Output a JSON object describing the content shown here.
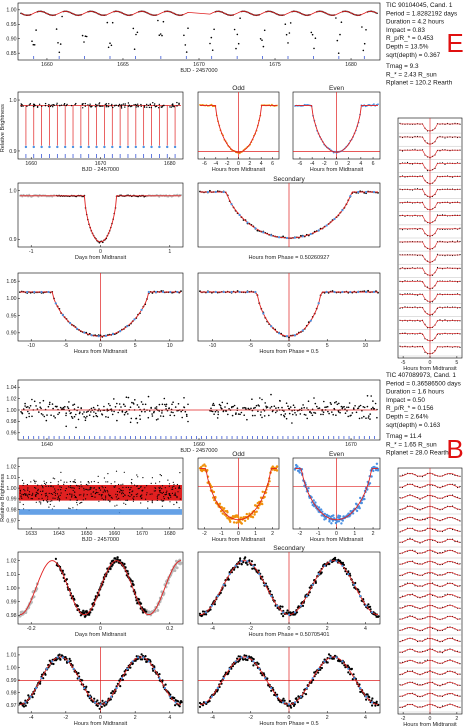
{
  "chart_data": [
    {
      "type": "scatter",
      "target": "TIC 90104045, Cand. 1",
      "params": [
        "Period = 1.8282192 days",
        "Duration = 4.2 hours",
        "Impact = 0.83",
        "R_p/R_* = 0.453",
        "Depth = 13.5%",
        "sqrt(depth) = 0.367"
      ],
      "stellar": [
        "Tmag = 9.3",
        "R_* = 2.43 R_sun",
        "Rplanet = 120.2 Rearth"
      ],
      "letter": "E",
      "panels": {
        "full_lc": {
          "xlabel": "BJD - 2457000",
          "xticks": [
            "1660",
            "1665",
            "1670",
            "1675",
            "1680"
          ],
          "yticks": [
            "1.00",
            "0.95",
            "0.90",
            "0.85"
          ],
          "xlim": [
            1656,
            1683
          ],
          "ylim": [
            0.84,
            1.02
          ],
          "period": 1.8282192,
          "depth": 0.135
        },
        "binned_lc": {
          "ylabel": "Relative Brightness",
          "xlabel": "BJD - 2457000",
          "xticks": [
            "1660",
            "1670",
            "1680"
          ],
          "yticks": [
            "1.0",
            "0.9"
          ]
        },
        "odd": {
          "title": "Odd",
          "xlabel": "Hours from Midtransit",
          "xticks": [
            "-6",
            "-4",
            "-2",
            "0",
            "2",
            "4",
            "6"
          ]
        },
        "even": {
          "title": "Even",
          "xlabel": "Hours from Midtransit",
          "xticks": [
            "-6",
            "-4",
            "-2",
            "0",
            "2",
            "4",
            "6"
          ]
        },
        "folded_full": {
          "xlabel": "Days from Midtransit",
          "xticks": [
            "-1",
            "0",
            "1"
          ],
          "yticks": [
            "1.0",
            "0.9"
          ]
        },
        "secondary": {
          "title": "Secondary",
          "xlabel": "Hours from Phase = 0.50260927",
          "yticks": [
            "1.0",
            "0.9"
          ]
        },
        "zoom": {
          "xlabel": "Hours from Midtransit",
          "xticks": [
            "-10",
            "-5",
            "0",
            "5",
            "10"
          ],
          "yticks": [
            "1.05",
            "1.00",
            "0.95",
            "0.90"
          ]
        },
        "phase_half": {
          "xlabel": "Hours from Phase = 0.5",
          "xticks": [
            "-10",
            "-5",
            "0",
            "5",
            "10"
          ]
        },
        "individual": {
          "xlabel": "Hours from Midtransit",
          "xticks": [
            "-5",
            "0",
            "5"
          ],
          "yticks": [
            "1.0",
            "0.9"
          ]
        }
      }
    },
    {
      "type": "scatter",
      "target": "TIC 407089973, Cand. 1",
      "params": [
        "Period = 0.36586500 days",
        "Duration = 1.6 hours",
        "Impact = 0.50",
        "R_p/R_* = 0.156",
        "Depth = 2.64%",
        "sqrt(depth) = 0.163"
      ],
      "stellar": [
        "Tmag = 11.4",
        "R_* = 1.65 R_sun",
        "Rplanet = 28.0 Rearth"
      ],
      "letter": "B",
      "panels": {
        "full_lc": {
          "xlabel": "BJD - 2457000",
          "xticks": [
            "1640",
            "1660",
            "1670"
          ],
          "yticks": [
            "1.04",
            "1.02",
            "1.00",
            "0.98",
            "0.96"
          ],
          "xlim": [
            1625,
            1683
          ],
          "ylim": [
            0.955,
            1.05
          ],
          "period": 0.365865,
          "depth": 0.0264
        },
        "binned_lc": {
          "ylabel": "Relative Brightness",
          "xlabel": "BJD - 2457000",
          "xticks": [
            "1633",
            "1643",
            "1650",
            "1660",
            "1670",
            "1680"
          ],
          "yticks": [
            "1.02",
            "1.01",
            "1.00",
            "0.99",
            "0.98",
            "0.97"
          ]
        },
        "odd": {
          "title": "Odd",
          "xlabel": "Hours from Midtransit",
          "xticks": [
            "-2",
            "-1",
            "0",
            "1",
            "2"
          ]
        },
        "even": {
          "title": "Even",
          "xlabel": "Hours from Midtransit",
          "xticks": [
            "-2",
            "-1",
            "0",
            "1",
            "2"
          ]
        },
        "folded_full": {
          "xlabel": "Days from Midtransit",
          "xticks": [
            "-0.2",
            "0",
            "0.2"
          ],
          "yticks": [
            "1.02",
            "1.01",
            "1.00",
            "0.99",
            "0.98"
          ]
        },
        "secondary": {
          "title": "Secondary",
          "xlabel": "Hours from Phase = 0.50705401",
          "xticks": [
            "-4",
            "-2",
            "0",
            "2",
            "4"
          ]
        },
        "zoom": {
          "xlabel": "Hours from Midtransit",
          "xticks": [
            "-4",
            "-2",
            "0",
            "2",
            "4"
          ],
          "yticks": [
            "1.01",
            "1.00",
            "0.99",
            "0.98",
            "0.97"
          ]
        },
        "phase_half": {
          "xlabel": "Hours from Phase = 0.5",
          "xticks": [
            "-4",
            "-2",
            "0",
            "2",
            "4"
          ]
        },
        "individual": {
          "xlabel": "Hours from Midtransit",
          "xticks": [
            "-2",
            "0",
            "2"
          ]
        }
      }
    }
  ],
  "colors": {
    "data": "#000000",
    "model": "#e02020",
    "binned": "#4a90e2",
    "odd": "#f0900a",
    "even": "#4a90e2",
    "folded": "#b8b8b8",
    "transit_marks": "#2040d0",
    "accent": "#e01010"
  }
}
